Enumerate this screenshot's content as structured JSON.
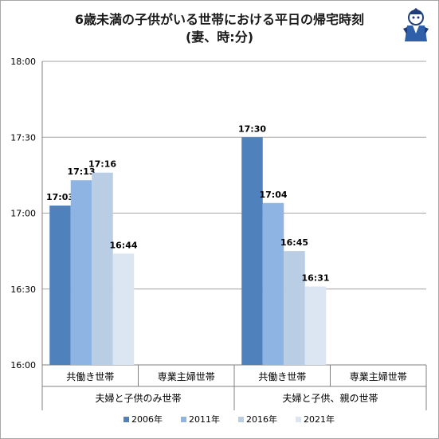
{
  "title": {
    "line1": "6歳未満の子供がいる世帯における平日の帰宅時刻",
    "line2": "(妻、時:分)"
  },
  "chart_data": {
    "type": "bar",
    "title": "6歳未満の子供がいる世帯における平日の帰宅時刻 (妻、時:分)",
    "ylim": [
      "16:00",
      "18:00"
    ],
    "yticks": [
      "18:00",
      "17:30",
      "17:00",
      "16:30",
      "16:00"
    ],
    "grid": true,
    "legend_position": "bottom",
    "groups": [
      {
        "label": "夫婦と子供のみ世帯",
        "categories": [
          "共働き世帯",
          "専業主婦世帯"
        ]
      },
      {
        "label": "夫婦と子供、親の世帯",
        "categories": [
          "共働き世帯",
          "専業主婦世帯"
        ]
      }
    ],
    "categories": [
      "共働き世帯",
      "専業主婦世帯",
      "共働き世帯",
      "専業主婦世帯"
    ],
    "series": [
      {
        "name": "2006年",
        "color": "#4f81bd",
        "values": [
          "17:03",
          null,
          "17:30",
          null
        ]
      },
      {
        "name": "2011年",
        "color": "#8eb4e3",
        "values": [
          "17:13",
          null,
          "17:04",
          null
        ]
      },
      {
        "name": "2016年",
        "color": "#b9cde5",
        "values": [
          "17:16",
          null,
          "16:45",
          null
        ]
      },
      {
        "name": "2021年",
        "color": "#dce6f2",
        "values": [
          "16:44",
          null,
          "16:31",
          null
        ]
      }
    ]
  }
}
